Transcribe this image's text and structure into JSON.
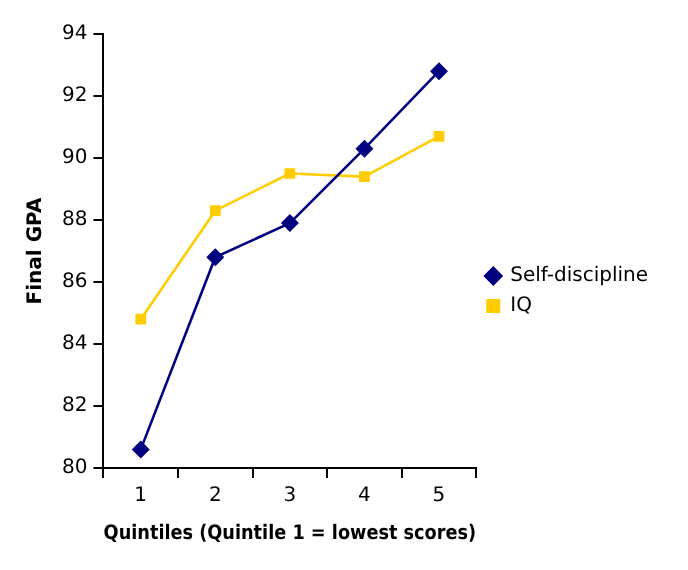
{
  "chart_data": {
    "type": "line",
    "xlabel": "Quintiles (Quintile 1 = lowest scores)",
    "ylabel": "Final GPA",
    "categories": [
      "1",
      "2",
      "3",
      "4",
      "5"
    ],
    "series": [
      {
        "name": "Self-discipline",
        "color": "#000080",
        "marker": "diamond",
        "values": [
          80.6,
          86.8,
          87.9,
          90.3,
          92.8
        ]
      },
      {
        "name": "IQ",
        "color": "#ffcc00",
        "marker": "square",
        "values": [
          84.8,
          88.3,
          89.5,
          89.4,
          90.7
        ]
      }
    ],
    "ylim": [
      80,
      94
    ],
    "yticks": [
      80,
      82,
      84,
      86,
      88,
      90,
      92,
      94
    ],
    "grid": false,
    "legend": "right"
  }
}
